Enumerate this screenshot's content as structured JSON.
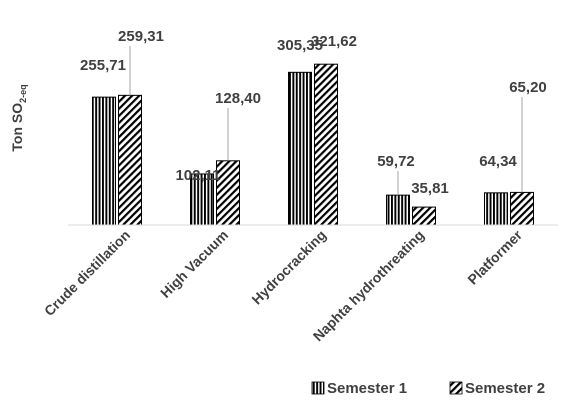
{
  "chart_data": {
    "type": "bar",
    "categories": [
      "Crude distillation",
      "High Vacuum",
      "Hydrocracking",
      "Naphta hydrothreating",
      "Platformer"
    ],
    "series": [
      {
        "name": "Semester 1",
        "values": [
          255.71,
          102.11,
          305.35,
          59.72,
          64.34
        ],
        "labels": [
          "255,71",
          "102,11",
          "305,35",
          "59,72",
          "64,34"
        ],
        "pattern": "vertical-stripes"
      },
      {
        "name": "Semester 2",
        "values": [
          259.31,
          128.4,
          321.62,
          35.81,
          65.2
        ],
        "labels": [
          "259,31",
          "128,40",
          "321,62",
          "35,81",
          "65,20"
        ],
        "pattern": "diagonal-stripes"
      }
    ],
    "ylabel_main": "Ton SO",
    "ylabel_sub": "2-eq",
    "ylim": [
      0,
      350
    ],
    "grid": false,
    "legend_position": "bottom-right",
    "colors": {
      "bar_fill": "#000000",
      "bar_background": "#ffffff",
      "text": "#404040",
      "axis": "#d9d9d9",
      "leader": "#a6a6a6"
    }
  }
}
